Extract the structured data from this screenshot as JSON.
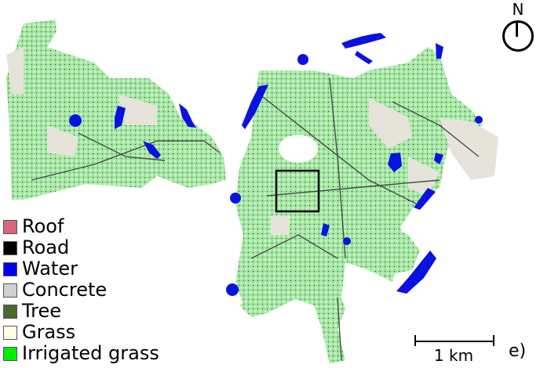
{
  "legend": {
    "items": [
      {
        "label": "Roof",
        "color": "#d9667a"
      },
      {
        "label": "Road",
        "color": "#000000"
      },
      {
        "label": "Water",
        "color": "#0000f0"
      },
      {
        "label": "Concrete",
        "color": "#d0d0d0"
      },
      {
        "label": "Tree",
        "color": "#4a6a30"
      },
      {
        "label": "Grass",
        "color": "#ffffe0"
      },
      {
        "label": "Irrigated grass",
        "color": "#00ee00"
      }
    ]
  },
  "north_arrow": {
    "letter": "N"
  },
  "scale_bar": {
    "label": "1 km"
  },
  "panel_label": "e)",
  "colors": {
    "irrigated_area": "#9ee59e",
    "concrete_area": "#e6e4da",
    "road": "#4a4a4a",
    "water": "#0a12e0"
  }
}
